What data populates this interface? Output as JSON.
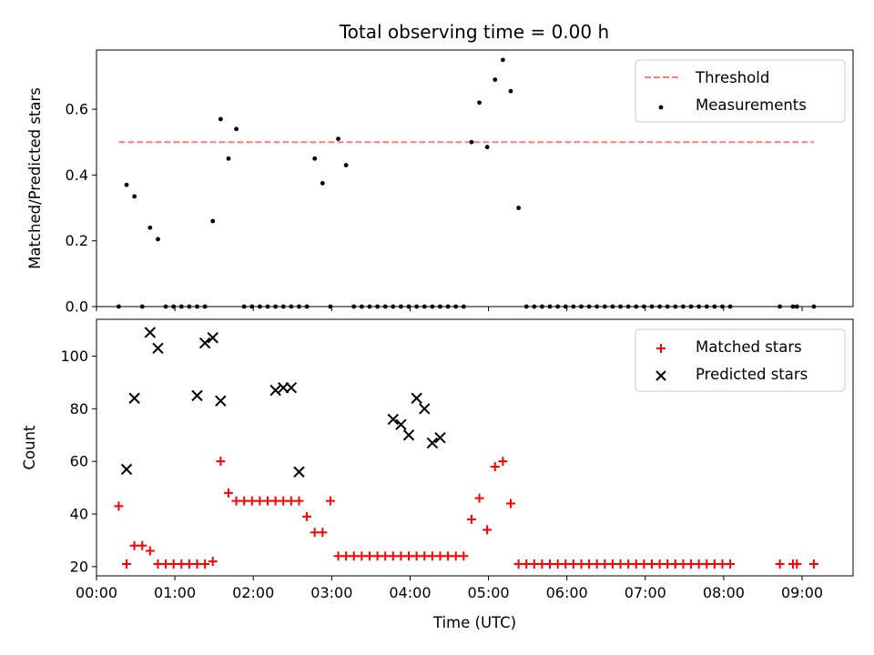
{
  "chart_data": [
    {
      "type": "scatter",
      "panel": "top",
      "title": "Total observing time = 0.00 h",
      "xlabel": "",
      "ylabel": "Matched/Predicted stars",
      "xlim": [
        "00:00",
        "09:39"
      ],
      "ylim": [
        0,
        0.78
      ],
      "yticks": [
        0.0,
        0.2,
        0.4,
        0.6
      ],
      "ytick_labels": [
        "0.0",
        "0.2",
        "0.4",
        "0.6"
      ],
      "x_tick_labels_shown": false,
      "legend_position": "top-right",
      "series": [
        {
          "name": "Threshold",
          "kind": "dashed-line",
          "color": "#ff7f7f",
          "x": [
            "00:17",
            "09:09"
          ],
          "y": [
            0.5,
            0.5
          ]
        },
        {
          "name": "Measurements",
          "kind": "scatter-dot",
          "color": "#000000",
          "x": [
            "00:17",
            "00:23",
            "00:29",
            "00:35",
            "00:41",
            "00:47",
            "00:53",
            "00:59",
            "01:05",
            "01:11",
            "01:17",
            "01:23",
            "01:29",
            "01:35",
            "01:41",
            "01:47",
            "01:53",
            "01:59",
            "02:05",
            "02:11",
            "02:17",
            "02:23",
            "02:29",
            "02:35",
            "02:41",
            "02:47",
            "02:53",
            "02:59",
            "03:05",
            "03:11",
            "03:17",
            "03:23",
            "03:29",
            "03:35",
            "03:41",
            "03:47",
            "03:53",
            "03:59",
            "04:05",
            "04:11",
            "04:17",
            "04:23",
            "04:29",
            "04:35",
            "04:41",
            "04:47",
            "04:53",
            "04:59",
            "05:05",
            "05:11",
            "05:17",
            "05:23",
            "05:29",
            "05:35",
            "05:41",
            "05:47",
            "05:53",
            "05:59",
            "06:05",
            "06:11",
            "06:17",
            "06:23",
            "06:29",
            "06:35",
            "06:41",
            "06:47",
            "06:53",
            "06:59",
            "07:05",
            "07:11",
            "07:17",
            "07:23",
            "07:29",
            "07:35",
            "07:41",
            "07:47",
            "07:53",
            "07:59",
            "08:05",
            "08:43",
            "08:53",
            "08:56",
            "09:09"
          ],
          "y": [
            0,
            0.37,
            0.335,
            0,
            0.24,
            0.205,
            0,
            0,
            0,
            0,
            0,
            0,
            0.26,
            0.57,
            0.45,
            0.54,
            0,
            0,
            0,
            0,
            0,
            0,
            0,
            0,
            0,
            0.45,
            0.375,
            0,
            0.51,
            0.43,
            0,
            0,
            0,
            0,
            0,
            0,
            0,
            0,
            0,
            0,
            0,
            0,
            0,
            0,
            0,
            0.5,
            0.62,
            0.485,
            0.69,
            0.75,
            0.655,
            0.3,
            0,
            0,
            0,
            0,
            0,
            0,
            0,
            0,
            0,
            0,
            0,
            0,
            0,
            0,
            0,
            0,
            0,
            0,
            0,
            0,
            0,
            0,
            0,
            0,
            0,
            0,
            0,
            0,
            0,
            0,
            0
          ]
        }
      ]
    },
    {
      "type": "scatter",
      "panel": "bottom",
      "title": "",
      "xlabel": "Time (UTC)",
      "ylabel": "Count",
      "xlim": [
        "00:00",
        "09:39"
      ],
      "ylim": [
        16.5,
        114
      ],
      "xticks": [
        "00:00",
        "01:00",
        "02:00",
        "03:00",
        "04:00",
        "05:00",
        "06:00",
        "07:00",
        "08:00",
        "09:00"
      ],
      "yticks": [
        20,
        40,
        60,
        80,
        100
      ],
      "ytick_labels": [
        "20",
        "40",
        "60",
        "80",
        "100"
      ],
      "legend_position": "top-right",
      "series": [
        {
          "name": "Matched stars",
          "kind": "plus",
          "color": "#ff0000",
          "x": [
            "00:17",
            "00:23",
            "00:29",
            "00:35",
            "00:41",
            "00:47",
            "00:53",
            "00:59",
            "01:05",
            "01:11",
            "01:17",
            "01:23",
            "01:29",
            "01:35",
            "01:41",
            "01:47",
            "01:53",
            "01:59",
            "02:05",
            "02:11",
            "02:17",
            "02:23",
            "02:29",
            "02:35",
            "02:41",
            "02:47",
            "02:53",
            "02:59",
            "03:05",
            "03:11",
            "03:17",
            "03:23",
            "03:29",
            "03:35",
            "03:41",
            "03:47",
            "03:53",
            "03:59",
            "04:05",
            "04:11",
            "04:17",
            "04:23",
            "04:29",
            "04:35",
            "04:41",
            "04:47",
            "04:53",
            "04:59",
            "05:05",
            "05:11",
            "05:17",
            "05:23",
            "05:29",
            "05:35",
            "05:41",
            "05:47",
            "05:53",
            "05:59",
            "06:05",
            "06:11",
            "06:17",
            "06:23",
            "06:29",
            "06:35",
            "06:41",
            "06:47",
            "06:53",
            "06:59",
            "07:05",
            "07:11",
            "07:17",
            "07:23",
            "07:29",
            "07:35",
            "07:41",
            "07:47",
            "07:53",
            "07:59",
            "08:05",
            "08:43",
            "08:53",
            "08:56",
            "09:09"
          ],
          "y": [
            43,
            21,
            28,
            28,
            26,
            21,
            21,
            21,
            21,
            21,
            21,
            21,
            22,
            60,
            48,
            45,
            45,
            45,
            45,
            45,
            45,
            45,
            45,
            45,
            39,
            33,
            33,
            45,
            24,
            24,
            24,
            24,
            24,
            24,
            24,
            24,
            24,
            24,
            24,
            24,
            24,
            24,
            24,
            24,
            24,
            38,
            46,
            34,
            58,
            60,
            44,
            21,
            21,
            21,
            21,
            21,
            21,
            21,
            21,
            21,
            21,
            21,
            21,
            21,
            21,
            21,
            21,
            21,
            21,
            21,
            21,
            21,
            21,
            21,
            21,
            21,
            21,
            21,
            21,
            21,
            21,
            21,
            21
          ]
        },
        {
          "name": "Predicted stars",
          "kind": "cross",
          "color": "#000000",
          "x": [
            "00:23",
            "00:29",
            "00:41",
            "00:47",
            "01:17",
            "01:23",
            "01:29",
            "01:35",
            "02:17",
            "02:23",
            "02:29",
            "02:35",
            "03:47",
            "03:53",
            "03:59",
            "04:05",
            "04:11",
            "04:17",
            "04:23"
          ],
          "y": [
            57,
            84,
            109,
            103,
            85,
            105,
            107,
            83,
            87,
            88,
            88,
            56,
            76,
            74,
            70,
            84,
            80,
            67,
            69
          ]
        }
      ]
    }
  ]
}
